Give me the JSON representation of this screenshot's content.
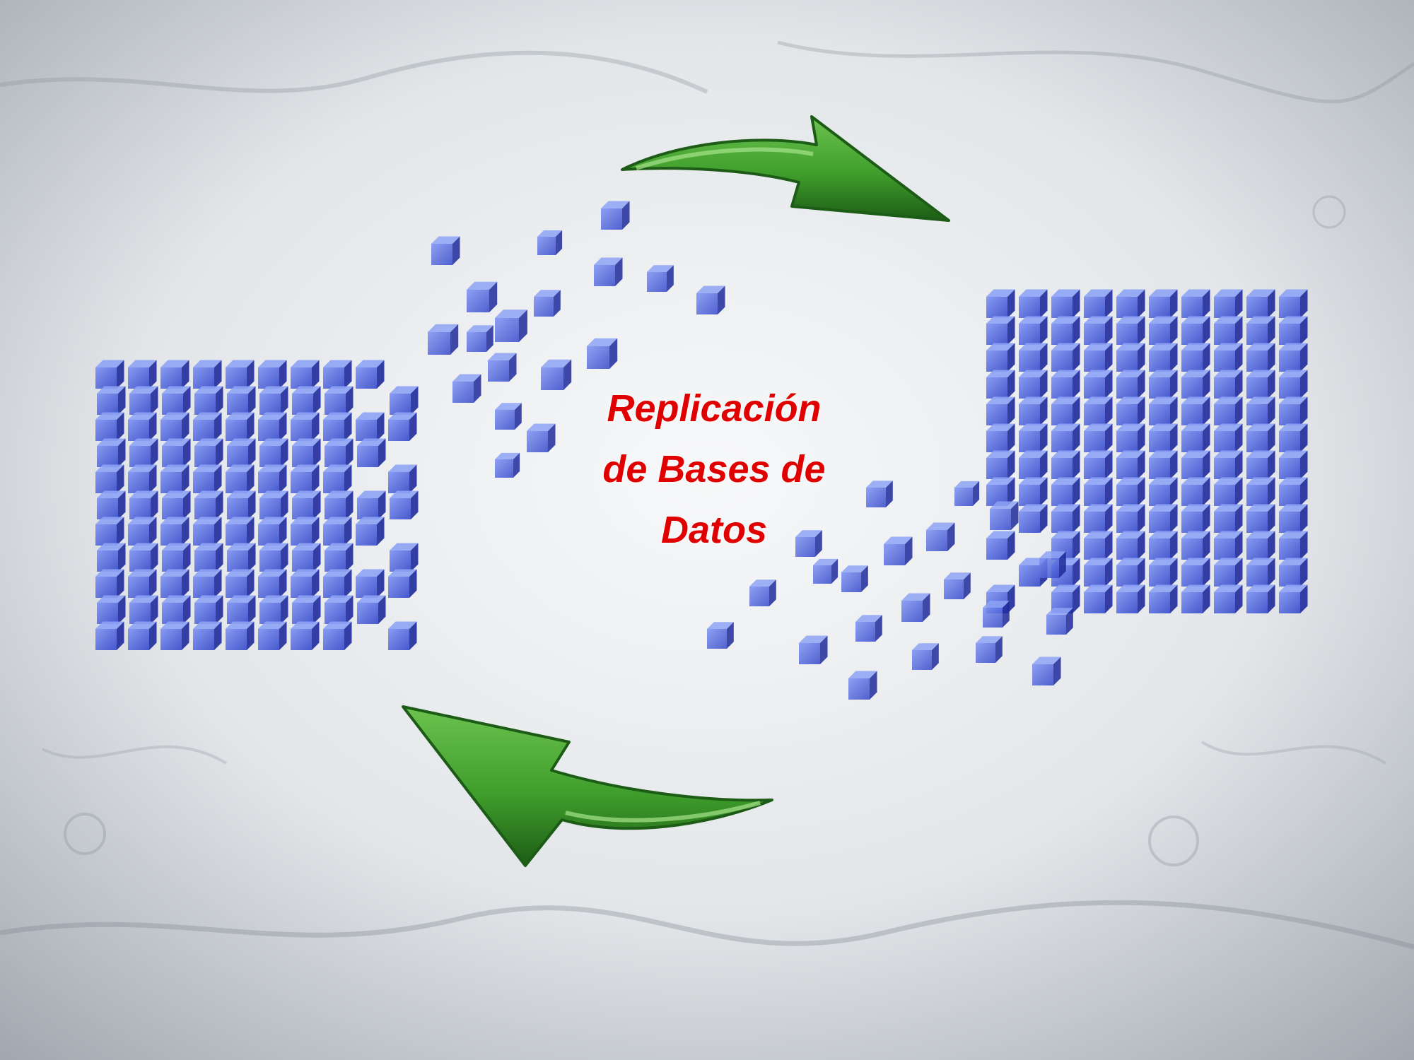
{
  "caption": {
    "lines": [
      "Replicación",
      "de Bases de",
      "Datos"
    ],
    "color": "#e00000"
  },
  "objects": {
    "left_cube": "database-cube",
    "right_cube": "database-cube",
    "top_arrow": "curved-arrow-right",
    "bottom_arrow": "curved-arrow-left"
  },
  "colors": {
    "cube_blue": "#4a5fe0",
    "cube_dark": "#1f2a9a",
    "cube_light": "#8ea3f5",
    "arrow_green": "#3f9e2b",
    "arrow_dark": "#1d5c16",
    "background": "#e4e7ea"
  }
}
